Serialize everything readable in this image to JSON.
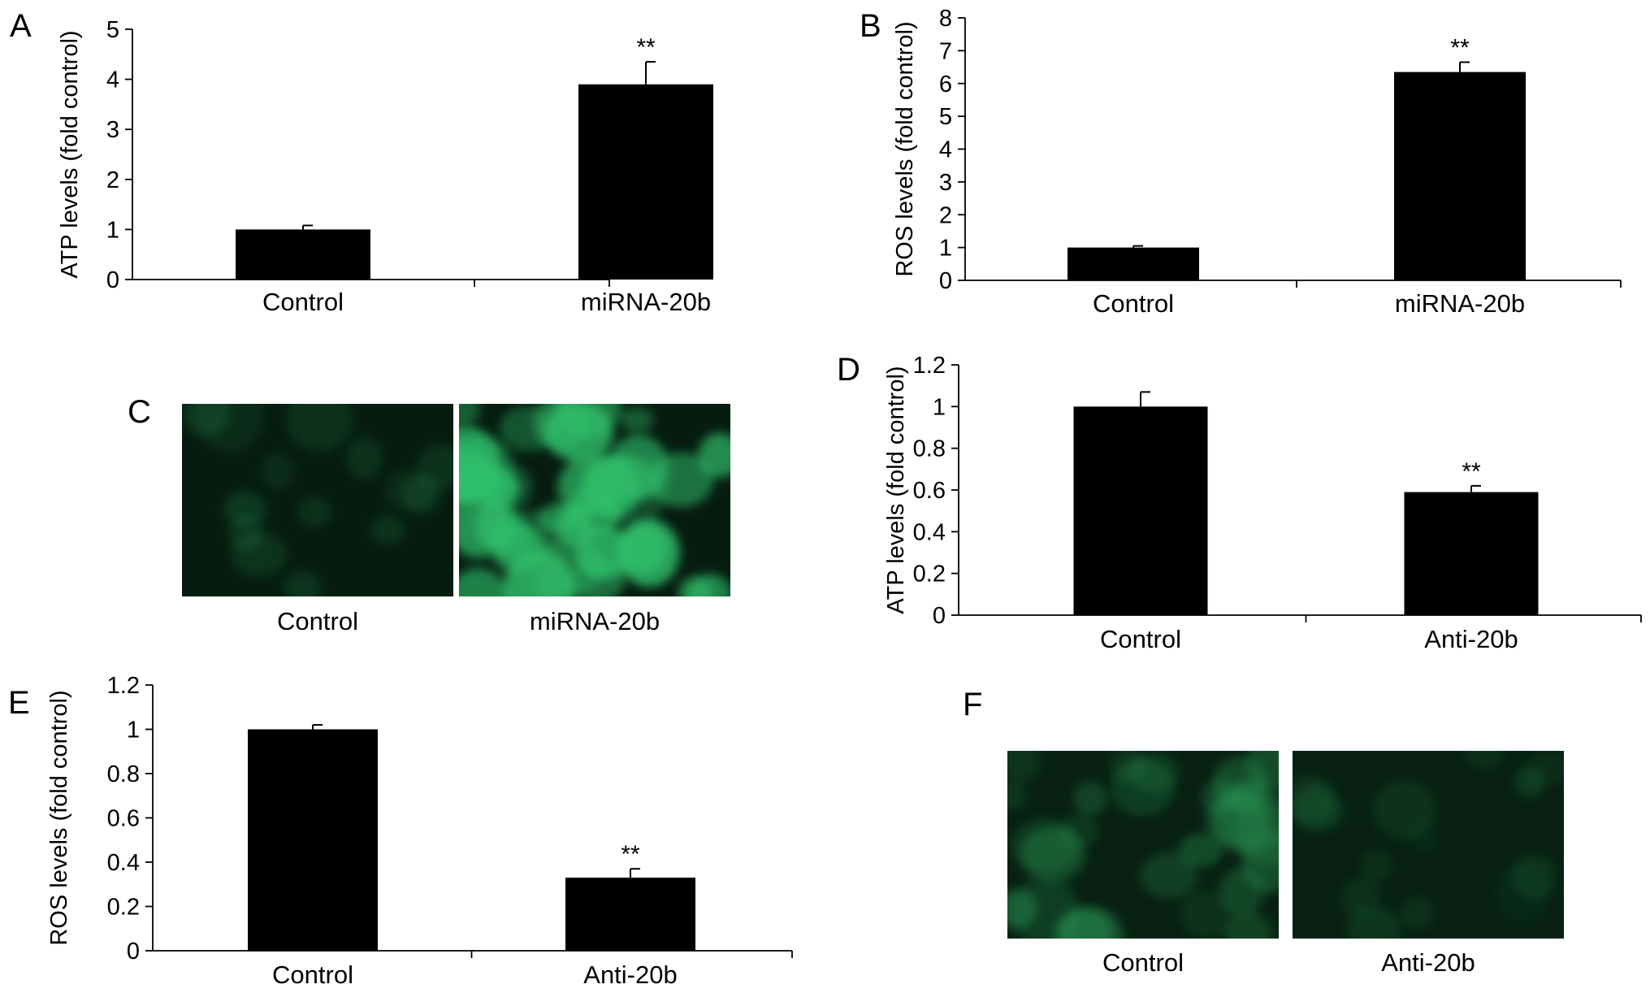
{
  "panels": [
    {
      "id": "A",
      "letter": "A"
    },
    {
      "id": "B",
      "letter": "B"
    },
    {
      "id": "C",
      "letter": "C"
    },
    {
      "id": "D",
      "letter": "D"
    },
    {
      "id": "E",
      "letter": "E"
    },
    {
      "id": "F",
      "letter": "F"
    }
  ],
  "chart_data": [
    {
      "panel": "A",
      "type": "bar",
      "categories": [
        "Control",
        "miRNA-20b"
      ],
      "values": [
        1.0,
        3.9
      ],
      "errors": [
        0.08,
        0.45
      ],
      "annotations": [
        "",
        "**"
      ],
      "ylabel": "ATP levels (fold control)",
      "ylim": [
        0,
        5
      ],
      "yticks": [
        "0",
        "1",
        "2",
        "3",
        "4",
        "5"
      ],
      "bar_color": "#000000"
    },
    {
      "panel": "B",
      "type": "bar",
      "categories": [
        "Control",
        "miRNA-20b"
      ],
      "values": [
        1.0,
        6.35
      ],
      "errors": [
        0.05,
        0.3
      ],
      "annotations": [
        "",
        "**"
      ],
      "ylabel": "ROS levels (fold control)",
      "ylim": [
        0,
        8
      ],
      "yticks": [
        "0",
        "1",
        "2",
        "3",
        "4",
        "5",
        "6",
        "7",
        "8"
      ],
      "bar_color": "#000000"
    },
    {
      "panel": "D",
      "type": "bar",
      "categories": [
        "Control",
        "Anti-20b"
      ],
      "values": [
        1.0,
        0.59
      ],
      "errors": [
        0.07,
        0.03
      ],
      "annotations": [
        "",
        "**"
      ],
      "ylabel": "ATP levels (fold control)",
      "ylim": [
        0,
        1.2
      ],
      "yticks": [
        "0",
        "0.2",
        "0.4",
        "0.6",
        "0.8",
        "1",
        "1.2"
      ],
      "bar_color": "#000000"
    },
    {
      "panel": "E",
      "type": "bar",
      "categories": [
        "Control",
        "Anti-20b"
      ],
      "values": [
        1.0,
        0.33
      ],
      "errors": [
        0.02,
        0.04
      ],
      "annotations": [
        "",
        "**"
      ],
      "ylabel": "ROS levels (fold control)",
      "ylim": [
        0,
        1.2
      ],
      "yticks": [
        "0",
        "0.2",
        "0.4",
        "0.6",
        "0.8",
        "1",
        "1.2"
      ],
      "bar_color": "#000000"
    }
  ],
  "micrographs": [
    {
      "panel": "C",
      "labels": [
        "Control",
        "miRNA-20b"
      ],
      "intensity": [
        "low",
        "high"
      ],
      "base_color": "#061c10",
      "cell_color": "#2fbf6a"
    },
    {
      "panel": "F",
      "labels": [
        "Control",
        "Anti-20b"
      ],
      "intensity": [
        "medium",
        "low"
      ],
      "base_color": "#072012",
      "cell_color": "#2a9a55"
    }
  ]
}
